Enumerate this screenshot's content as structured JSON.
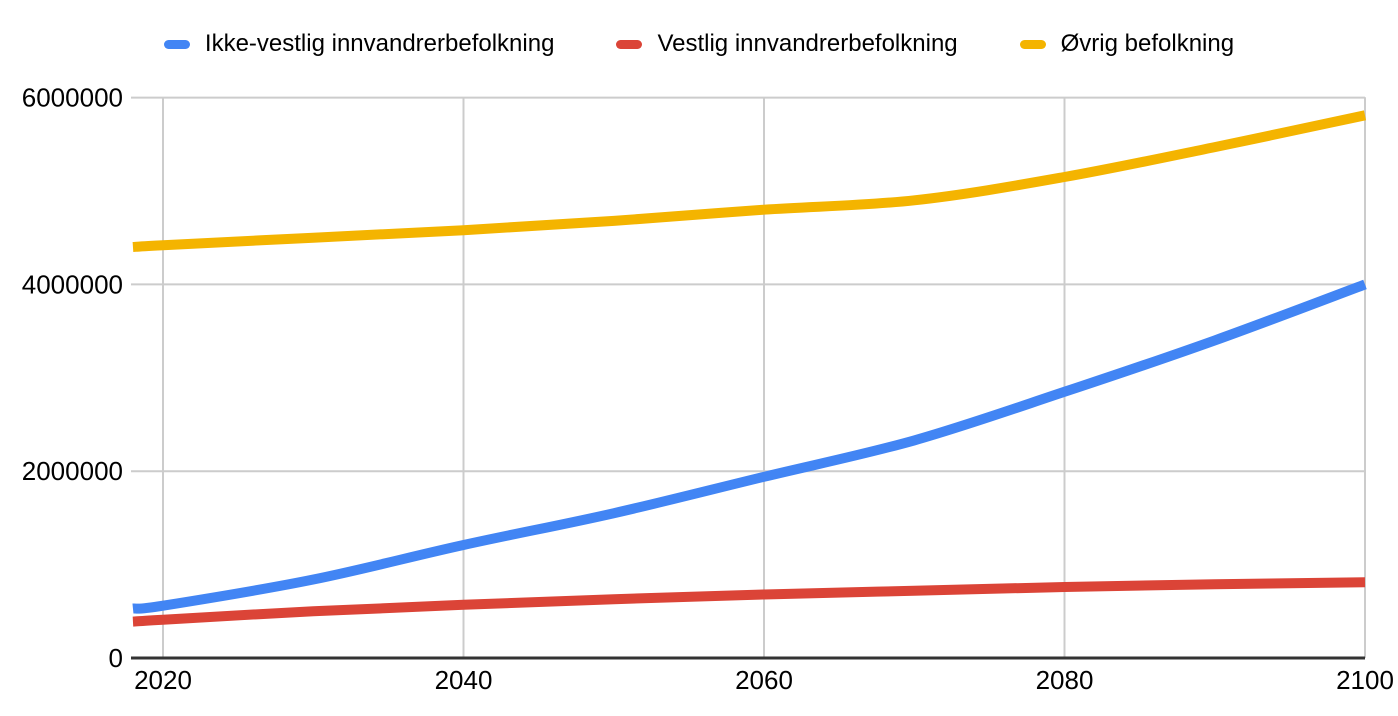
{
  "chart_data": {
    "type": "line",
    "title": "",
    "xlabel": "",
    "ylabel": "",
    "x": [
      2018,
      2020,
      2030,
      2040,
      2050,
      2060,
      2070,
      2080,
      2090,
      2100
    ],
    "series": [
      {
        "name": "Ikke-vestlig innvandrerbefolkning",
        "color": "#4285F4",
        "values": [
          530000,
          560000,
          840000,
          1210000,
          1550000,
          1940000,
          2330000,
          2850000,
          3400000,
          4000000
        ]
      },
      {
        "name": "Vestlig innvandrerbefolkning",
        "color": "#DB4437",
        "values": [
          390000,
          410000,
          500000,
          570000,
          630000,
          680000,
          720000,
          760000,
          790000,
          810000
        ]
      },
      {
        "name": "Øvrig befolkning",
        "color": "#F4B400",
        "values": [
          4400000,
          4420000,
          4500000,
          4580000,
          4680000,
          4800000,
          4900000,
          5150000,
          5470000,
          5810000
        ]
      }
    ],
    "xlim": [
      2018,
      2100
    ],
    "ylim": [
      0,
      6000000
    ],
    "x_ticks": [
      2020,
      2040,
      2060,
      2080,
      2100
    ],
    "x_tick_labels": [
      "2020",
      "2040",
      "2060",
      "2080",
      "2100"
    ],
    "y_ticks": [
      0,
      2000000,
      4000000,
      6000000
    ],
    "y_tick_labels": [
      "0",
      "2000000",
      "4000000",
      "6000000"
    ],
    "grid": true,
    "legend_position": "top",
    "colors": {
      "gridline": "#cccccc",
      "axis": "#333333",
      "text": "#000000",
      "background": "#ffffff"
    }
  }
}
